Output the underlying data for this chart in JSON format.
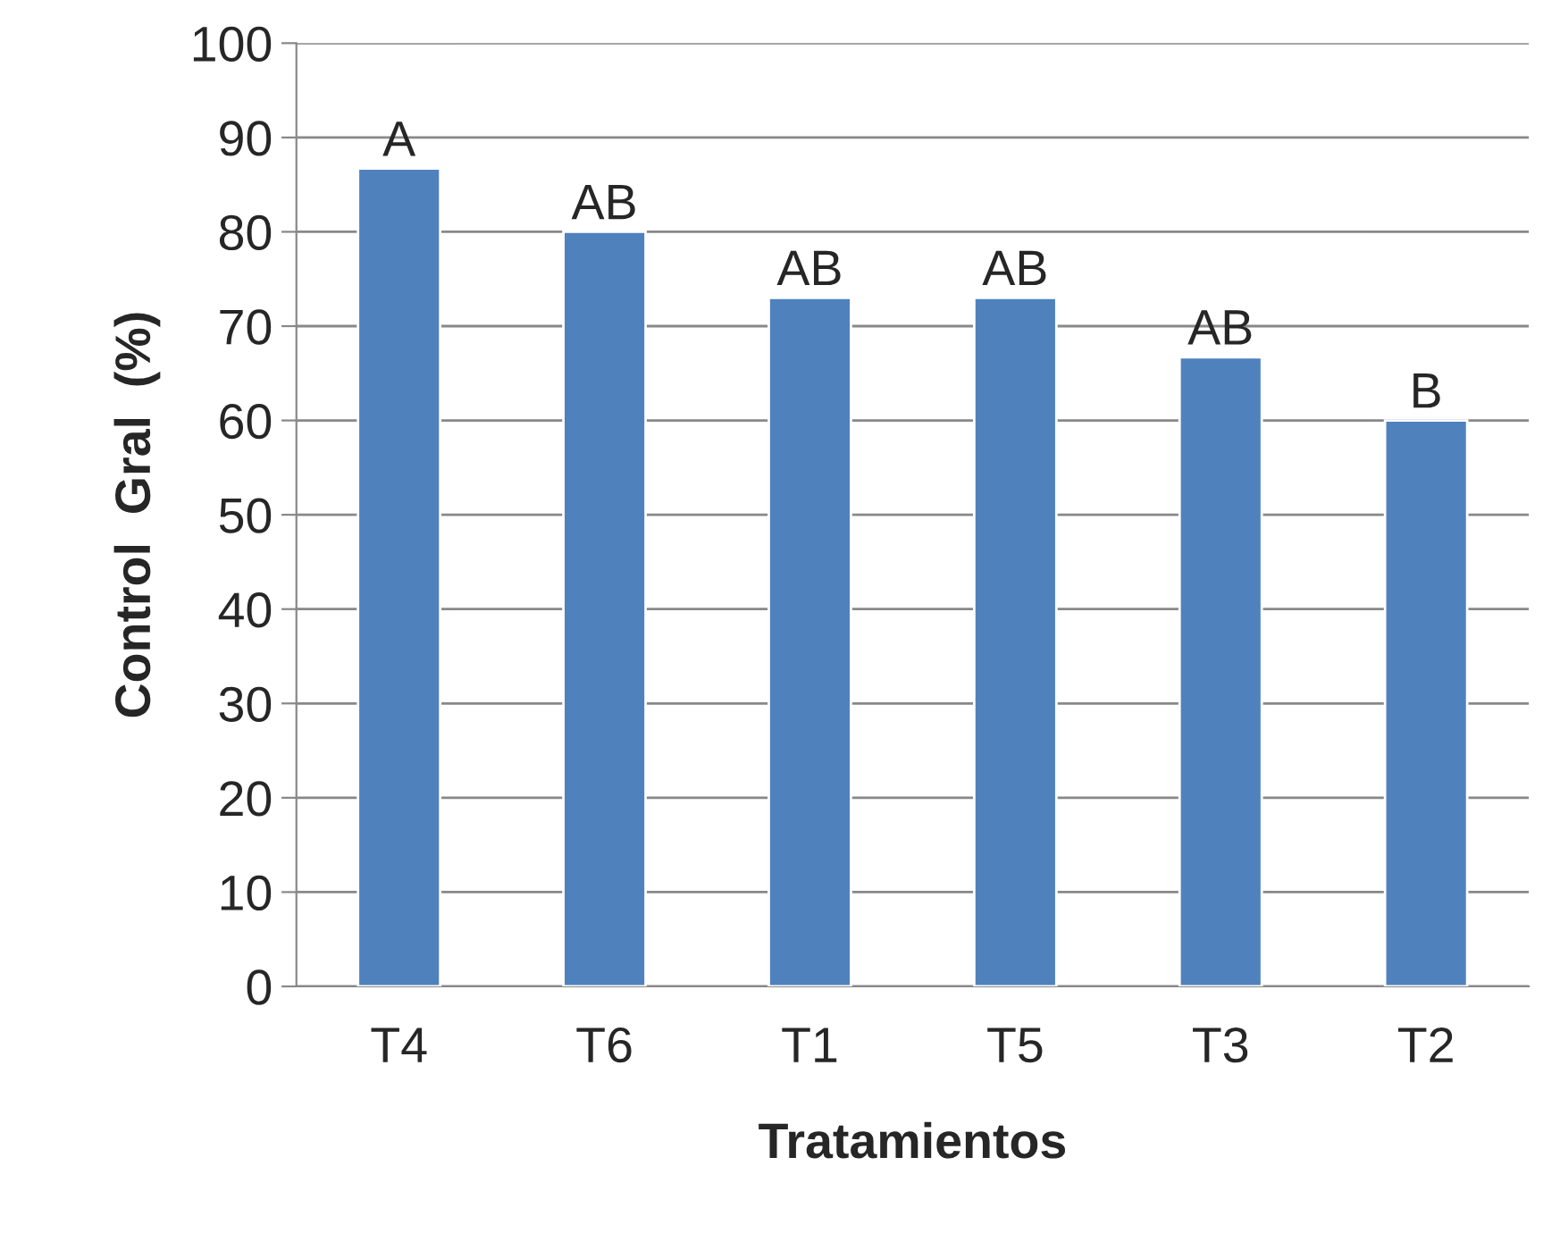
{
  "chart_data": {
    "type": "bar",
    "xlabel": "Tratamientos",
    "ylabel": "Control  Gral  (%)",
    "categories": [
      "T4",
      "T6",
      "T1",
      "T5",
      "T3",
      "T2"
    ],
    "values": [
      86.7,
      80,
      73,
      73,
      66.7,
      60
    ],
    "value_labels": [
      "A",
      "AB",
      "AB",
      "AB",
      "AB",
      "B"
    ],
    "color": "#4f81bd",
    "ylim": [
      0,
      100
    ],
    "yticks": [
      0,
      10,
      20,
      30,
      40,
      50,
      60,
      70,
      80,
      90,
      100
    ],
    "grid": "y"
  }
}
